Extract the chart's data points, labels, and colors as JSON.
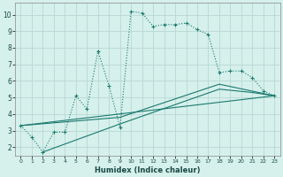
{
  "xlabel": "Humidex (Indice chaleur)",
  "bg_color": "#d6f0ec",
  "grid_color": "#b8d8d4",
  "line_color": "#1a7a6e",
  "xlim": [
    -0.5,
    23.5
  ],
  "ylim": [
    1.5,
    10.7
  ],
  "xticks": [
    0,
    1,
    2,
    3,
    4,
    5,
    6,
    7,
    8,
    9,
    10,
    11,
    12,
    13,
    14,
    15,
    16,
    17,
    18,
    19,
    20,
    21,
    22,
    23
  ],
  "yticks": [
    2,
    3,
    4,
    5,
    6,
    7,
    8,
    9,
    10
  ],
  "line1_x": [
    0,
    1,
    2,
    3,
    4,
    5,
    6,
    7,
    8,
    9,
    10,
    11,
    12,
    13,
    14,
    15,
    16,
    17,
    18,
    19,
    20,
    21,
    22,
    23
  ],
  "line1_y": [
    3.3,
    2.6,
    1.7,
    2.9,
    2.9,
    5.1,
    4.3,
    7.8,
    5.7,
    3.2,
    10.2,
    10.1,
    9.3,
    9.4,
    9.4,
    9.5,
    9.1,
    8.8,
    6.5,
    6.6,
    6.6,
    6.2,
    5.4,
    5.1
  ],
  "line2_x": [
    0,
    23
  ],
  "line2_y": [
    3.3,
    5.1
  ],
  "line3_x": [
    0,
    9,
    18,
    23
  ],
  "line3_y": [
    3.3,
    3.8,
    5.8,
    5.1
  ],
  "line4_x": [
    2,
    9,
    18,
    21,
    23
  ],
  "line4_y": [
    1.7,
    3.4,
    5.5,
    5.3,
    5.1
  ]
}
